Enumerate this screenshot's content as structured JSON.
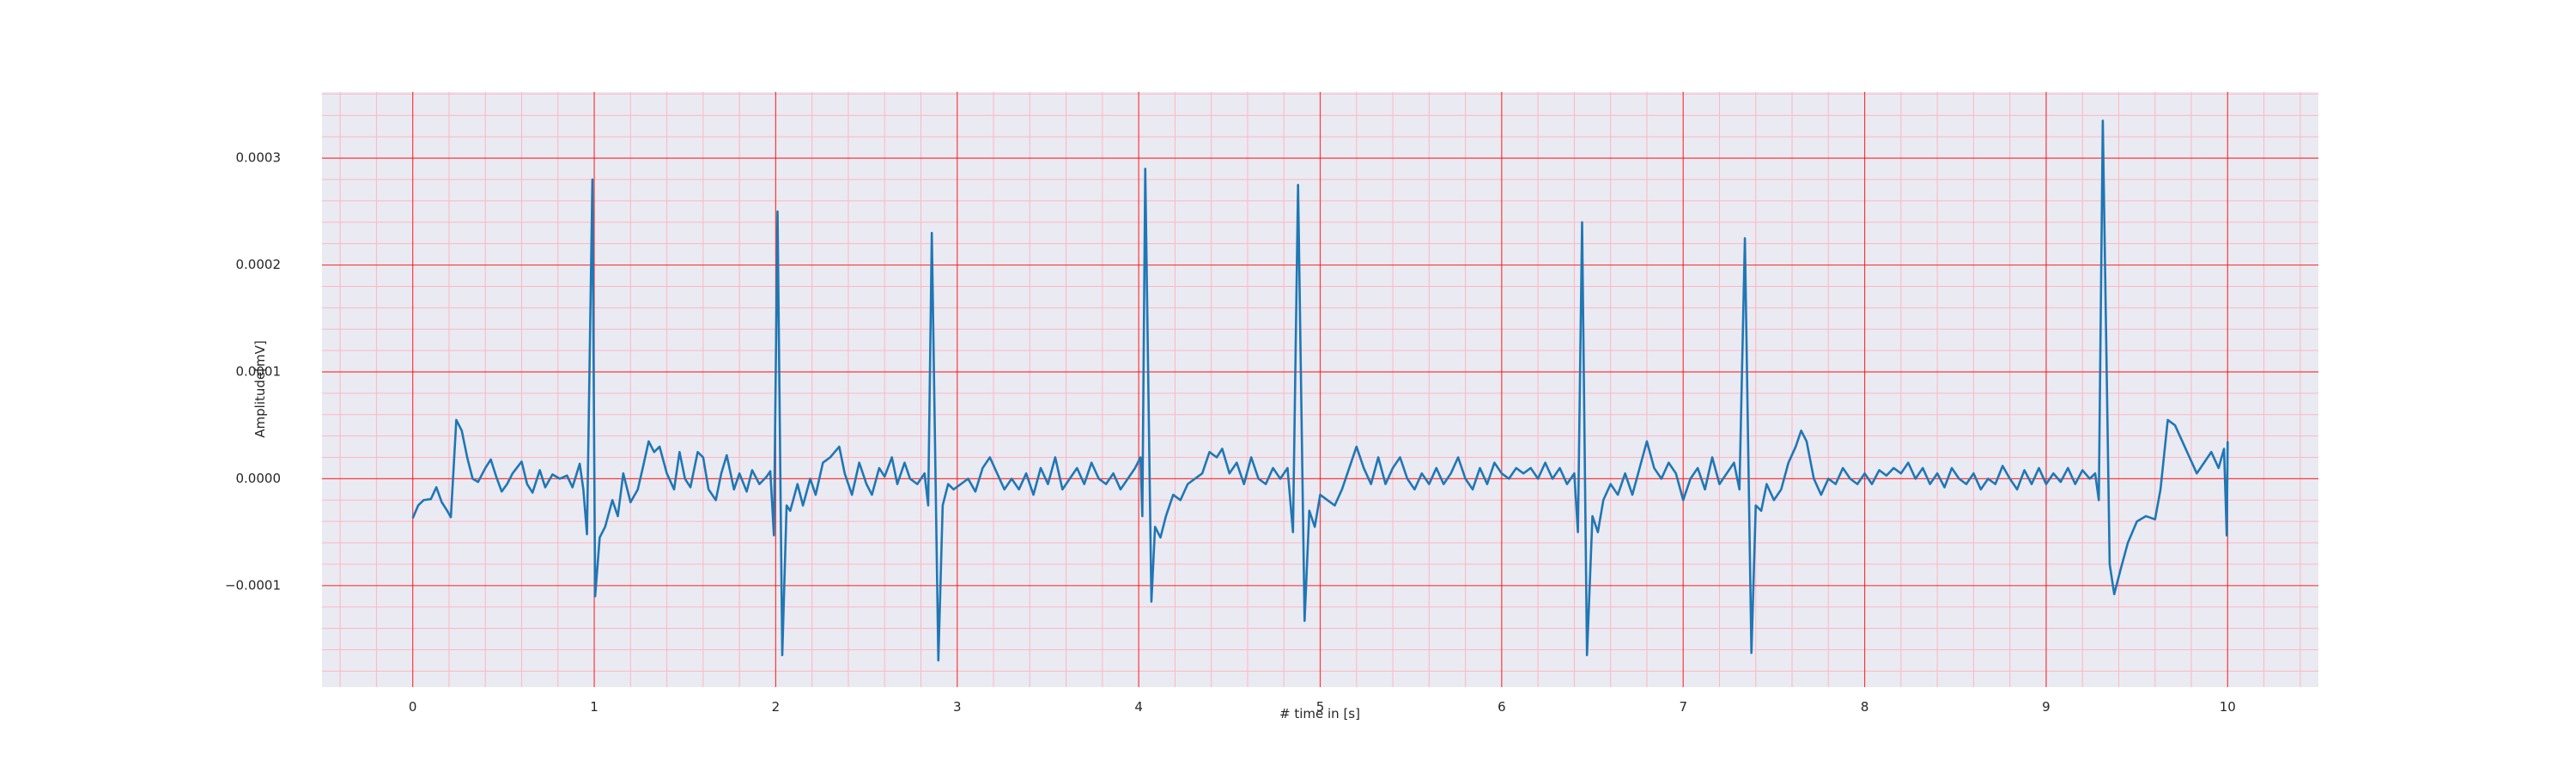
{
  "chart_data": {
    "type": "line",
    "xlabel": "# time in [s]",
    "ylabel": "Amplitude[mV]",
    "color": "#1f77b4",
    "background": "#eaeaf2",
    "grid": true,
    "grid_color": "#ff0000",
    "minor_grid": true,
    "minor_grid_color": "#ffb6c1",
    "xlim": [
      -0.5,
      10.5
    ],
    "ylim": [
      -0.000195,
      0.000362
    ],
    "xticks": [
      0,
      1,
      2,
      3,
      4,
      5,
      6,
      7,
      8,
      9,
      10
    ],
    "yticks": [
      {
        "value": -0.0001,
        "label": "−0.0001"
      },
      {
        "value": 0,
        "label": "0.0000"
      },
      0.0001,
      0.0002,
      0.0003
    ],
    "xminor": [
      -0.4,
      -0.2,
      0.2,
      0.4,
      0.6,
      0.8,
      1.2,
      1.4,
      1.6,
      1.8,
      2.2,
      2.4,
      2.6,
      2.8,
      3.2,
      3.4,
      3.6,
      3.8,
      4.2,
      4.4,
      4.6,
      4.8,
      5.2,
      5.4,
      5.6,
      5.8,
      6.2,
      6.4,
      6.6,
      6.8,
      7.2,
      7.4,
      7.6,
      7.8,
      8.2,
      8.4,
      8.6,
      8.8,
      9.2,
      9.4,
      9.6,
      9.8,
      10.2,
      10.4
    ],
    "yminor": [
      -0.00018,
      -0.00016,
      -0.00014,
      -0.00012,
      -8e-05,
      -6e-05,
      -4e-05,
      -2e-05,
      2e-05,
      4e-05,
      6e-05,
      8e-05,
      0.00012,
      0.00014,
      0.00016,
      0.00018,
      0.00022,
      0.00024,
      0.00026,
      0.00028,
      0.00032,
      0.00034,
      0.00036
    ],
    "x": [
      0,
      0.03,
      0.06,
      0.1,
      0.13,
      0.16,
      0.19,
      0.21,
      0.24,
      0.27,
      0.3,
      0.33,
      0.36,
      0.4,
      0.43,
      0.46,
      0.49,
      0.52,
      0.55,
      0.6,
      0.63,
      0.66,
      0.7,
      0.73,
      0.77,
      0.81,
      0.85,
      0.88,
      0.92,
      0.94,
      0.96,
      0.99,
      1.005,
      1.03,
      1.06,
      1.1,
      1.13,
      1.16,
      1.2,
      1.24,
      1.27,
      1.3,
      1.33,
      1.36,
      1.4,
      1.44,
      1.47,
      1.5,
      1.53,
      1.57,
      1.6,
      1.63,
      1.67,
      1.7,
      1.73,
      1.77,
      1.8,
      1.84,
      1.87,
      1.91,
      1.95,
      1.97,
      1.99,
      2.01,
      2.036,
      2.06,
      2.08,
      2.12,
      2.15,
      2.19,
      2.22,
      2.26,
      2.3,
      2.35,
      2.38,
      2.42,
      2.46,
      2.5,
      2.53,
      2.57,
      2.6,
      2.64,
      2.67,
      2.71,
      2.74,
      2.78,
      2.82,
      2.84,
      2.86,
      2.896,
      2.92,
      2.95,
      2.98,
      3.02,
      3.06,
      3.1,
      3.14,
      3.18,
      3.22,
      3.26,
      3.3,
      3.34,
      3.38,
      3.42,
      3.46,
      3.5,
      3.54,
      3.58,
      3.62,
      3.66,
      3.7,
      3.74,
      3.78,
      3.82,
      3.86,
      3.9,
      3.94,
      3.98,
      4.01,
      4.02,
      4.036,
      4.07,
      4.09,
      4.12,
      4.15,
      4.19,
      4.23,
      4.27,
      4.31,
      4.35,
      4.39,
      4.43,
      4.46,
      4.5,
      4.54,
      4.58,
      4.62,
      4.66,
      4.7,
      4.74,
      4.78,
      4.82,
      4.85,
      4.878,
      4.914,
      4.94,
      4.97,
      5.0,
      5.04,
      5.08,
      5.12,
      5.16,
      5.2,
      5.24,
      5.28,
      5.32,
      5.36,
      5.4,
      5.44,
      5.48,
      5.52,
      5.56,
      5.6,
      5.64,
      5.68,
      5.72,
      5.76,
      5.8,
      5.84,
      5.88,
      5.92,
      5.96,
      6.0,
      6.04,
      6.08,
      6.12,
      6.16,
      6.2,
      6.24,
      6.28,
      6.32,
      6.36,
      6.4,
      6.42,
      6.443,
      6.47,
      6.5,
      6.53,
      6.56,
      6.6,
      6.64,
      6.68,
      6.72,
      6.76,
      6.8,
      6.84,
      6.88,
      6.92,
      6.96,
      7.0,
      7.04,
      7.08,
      7.12,
      7.16,
      7.2,
      7.24,
      7.28,
      7.31,
      7.34,
      7.376,
      7.4,
      7.43,
      7.46,
      7.5,
      7.54,
      7.58,
      7.62,
      7.65,
      7.68,
      7.72,
      7.76,
      7.8,
      7.84,
      7.88,
      7.92,
      7.96,
      8.0,
      8.04,
      8.08,
      8.12,
      8.16,
      8.2,
      8.24,
      8.28,
      8.32,
      8.36,
      8.4,
      8.44,
      8.48,
      8.52,
      8.56,
      8.6,
      8.64,
      8.68,
      8.72,
      8.76,
      8.8,
      8.84,
      8.88,
      8.92,
      8.96,
      9.0,
      9.04,
      9.08,
      9.12,
      9.16,
      9.2,
      9.24,
      9.27,
      9.29,
      9.312,
      9.35,
      9.375,
      9.41,
      9.45,
      9.5,
      9.55,
      9.6,
      9.63,
      9.67,
      9.71,
      9.75,
      9.79,
      9.83,
      9.87,
      9.91,
      9.95,
      9.98,
      9.995,
      10.0
    ],
    "values": [
      -3.7e-05,
      -2.5e-05,
      -2e-05,
      -1.9e-05,
      -8e-06,
      -2.2e-05,
      -3e-05,
      -3.6e-05,
      5.5e-05,
      4.5e-05,
      2e-05,
      0.0,
      -3e-06,
      1e-05,
      1.8e-05,
      2e-06,
      -1.2e-05,
      -5e-06,
      5e-06,
      1.6e-05,
      -5e-06,
      -1.3e-05,
      8e-06,
      -8e-06,
      4e-06,
      0.0,
      3e-06,
      -8e-06,
      1.4e-05,
      -1e-05,
      -5.2e-05,
      0.00028,
      -0.00011,
      -5.5e-05,
      -4.5e-05,
      -2e-05,
      -3.5e-05,
      5e-06,
      -2.2e-05,
      -1e-05,
      1.2e-05,
      3.5e-05,
      2.5e-05,
      3e-05,
      5e-06,
      -1e-05,
      2.5e-05,
      0.0,
      -8e-06,
      2.5e-05,
      2e-05,
      -1e-05,
      -2e-05,
      5e-06,
      2.2e-05,
      -1e-05,
      5e-06,
      -1.2e-05,
      8e-06,
      -5e-06,
      2e-06,
      7e-06,
      -5.3e-05,
      0.00025,
      -0.000165,
      -2.5e-05,
      -3e-05,
      -5e-06,
      -2.5e-05,
      0.0,
      -1.5e-05,
      1.5e-05,
      2e-05,
      3e-05,
      5e-06,
      -1.5e-05,
      1.5e-05,
      -5e-06,
      -1.5e-05,
      1e-05,
      2e-06,
      2e-05,
      -5e-06,
      1.5e-05,
      0.0,
      -5e-06,
      5e-06,
      -2.5e-05,
      0.00023,
      -0.00017,
      -2.5e-05,
      -5e-06,
      -1e-05,
      -5e-06,
      0.0,
      -1.2e-05,
      1e-05,
      2e-05,
      5e-06,
      -1e-05,
      0.0,
      -1e-05,
      5e-06,
      -1.5e-05,
      1e-05,
      -5e-06,
      2e-05,
      -1e-05,
      0.0,
      1e-05,
      -5e-06,
      1.5e-05,
      0.0,
      -5e-06,
      5e-06,
      -1e-05,
      0.0,
      1e-05,
      2e-05,
      -3.5e-05,
      0.00029,
      -0.000115,
      -4.5e-05,
      -5.5e-05,
      -3.5e-05,
      -1.5e-05,
      -2e-05,
      -5e-06,
      0.0,
      5e-06,
      2.5e-05,
      2e-05,
      2.8e-05,
      5e-06,
      1.5e-05,
      -5e-06,
      2e-05,
      0.0,
      -5e-06,
      1e-05,
      0.0,
      1e-05,
      -5e-05,
      0.000275,
      -0.000133,
      -3e-05,
      -4.5e-05,
      -1.5e-05,
      -2e-05,
      -2.5e-05,
      -1e-05,
      1e-05,
      3e-05,
      1e-05,
      -5e-06,
      2e-05,
      -5e-06,
      1e-05,
      2e-05,
      0.0,
      -1e-05,
      5e-06,
      -5e-06,
      1e-05,
      -5e-06,
      5e-06,
      2e-05,
      0.0,
      -1e-05,
      1e-05,
      -5e-06,
      1.5e-05,
      5e-06,
      0.0,
      1e-05,
      5e-06,
      1e-05,
      0.0,
      1.5e-05,
      0.0,
      1e-05,
      -5e-06,
      5e-06,
      -5e-05,
      0.00024,
      -0.000165,
      -3.5e-05,
      -5e-05,
      -2e-05,
      -5e-06,
      -1.5e-05,
      5e-06,
      -1.5e-05,
      1e-05,
      3.5e-05,
      1e-05,
      0.0,
      1.5e-05,
      5e-06,
      -2e-05,
      0.0,
      1e-05,
      -1e-05,
      2e-05,
      -5e-06,
      5e-06,
      1.5e-05,
      -1e-05,
      0.000225,
      -0.000163,
      -2.5e-05,
      -3e-05,
      -5e-06,
      -2e-05,
      -1e-05,
      1.5e-05,
      3e-05,
      4.5e-05,
      3.5e-05,
      0.0,
      -1.5e-05,
      0.0,
      -5e-06,
      1e-05,
      0.0,
      -5e-06,
      5e-06,
      -5e-06,
      8e-06,
      3e-06,
      1e-05,
      5e-06,
      1.5e-05,
      0.0,
      1e-05,
      -5e-06,
      5e-06,
      -8e-06,
      1e-05,
      0.0,
      -5e-06,
      5e-06,
      -1e-05,
      0.0,
      -5e-06,
      1.2e-05,
      0.0,
      -1e-05,
      8e-06,
      -5e-06,
      1e-05,
      -5e-06,
      5e-06,
      -3e-06,
      1e-05,
      -5e-06,
      8e-06,
      0.0,
      5e-06,
      -2e-05,
      0.000335,
      -8e-05,
      -0.000108,
      -8.5e-05,
      -6e-05,
      -4e-05,
      -3.5e-05,
      -3.8e-05,
      -1e-05,
      5.5e-05,
      5e-05,
      3.5e-05,
      2e-05,
      5e-06,
      1.5e-05,
      2.5e-05,
      1e-05,
      2.8e-05,
      -5.3e-05,
      3.5e-05
    ]
  }
}
